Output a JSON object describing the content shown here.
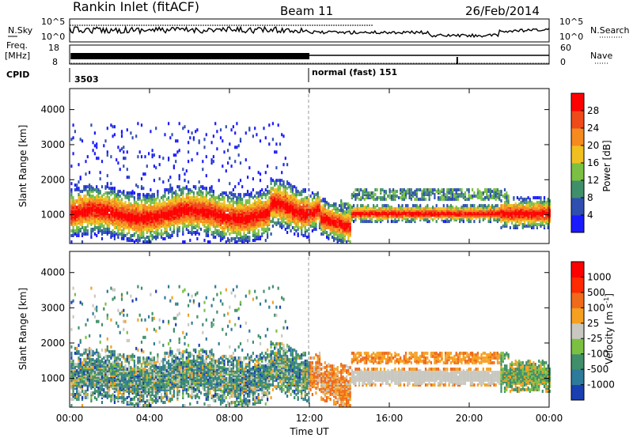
{
  "header": {
    "title": "Rankin Inlet (fitACF)",
    "beam": "Beam 11",
    "date": "26/Feb/2014"
  },
  "top_panels": {
    "nsky_label": "N.Sky",
    "nsearch_label": "N.Search",
    "freq_label_top": "Freq.",
    "freq_label_unit": "[MHz]",
    "nave_label": "Nave",
    "cpid_label": "CPID",
    "noise_ticks": [
      "10^5",
      "10^0"
    ],
    "freq_ticks": [
      "18",
      "8"
    ],
    "nave_ticks": [
      "60",
      "0"
    ],
    "cpid_segments": [
      {
        "start_hour": 0,
        "label": "3503"
      },
      {
        "start_hour": 12,
        "label": "normal (fast) 151"
      }
    ]
  },
  "chart_data": [
    {
      "type": "heatmap",
      "name": "power",
      "xlabel": "",
      "ylabel": "Slant Range [km]",
      "x_range_hours": [
        0,
        24
      ],
      "ylim": [
        180,
        4600
      ],
      "y_ticks": [
        "1000",
        "2000",
        "3000",
        "4000"
      ],
      "colorbar_label": "Power [dB]",
      "colorbar_ticks": [
        "4",
        "8",
        "12",
        "16",
        "20",
        "24",
        "28"
      ],
      "colorbar_colors": [
        "#1a1aff",
        "#2f4fb0",
        "#3f8f6a",
        "#7bc043",
        "#f0c020",
        "#f58a1f",
        "#ef4a1a",
        "#ff0000"
      ]
    },
    {
      "type": "heatmap",
      "name": "velocity",
      "xlabel": "Time UT",
      "ylabel": "Slant Range [km]",
      "x_range_hours": [
        0,
        24
      ],
      "ylim": [
        180,
        4600
      ],
      "y_ticks": [
        "1000",
        "2000",
        "3000",
        "4000"
      ],
      "x_ticks": [
        "00:00",
        "04:00",
        "08:00",
        "12:00",
        "16:00",
        "20:00",
        "00:00"
      ],
      "colorbar_label": "Velocity [m s",
      "colorbar_label_sup": "-1",
      "colorbar_label_end": "]",
      "colorbar_ticks": [
        "1000",
        "500",
        "100",
        "25",
        "-25",
        "-100",
        "-500",
        "-1000"
      ],
      "colorbar_colors": [
        "#1a3fb0",
        "#2d7a9a",
        "#3f8f6a",
        "#7bc043",
        "#c8c8c0",
        "#f5a020",
        "#ef6a1a",
        "#ff2a00",
        "#ff0000"
      ]
    }
  ]
}
